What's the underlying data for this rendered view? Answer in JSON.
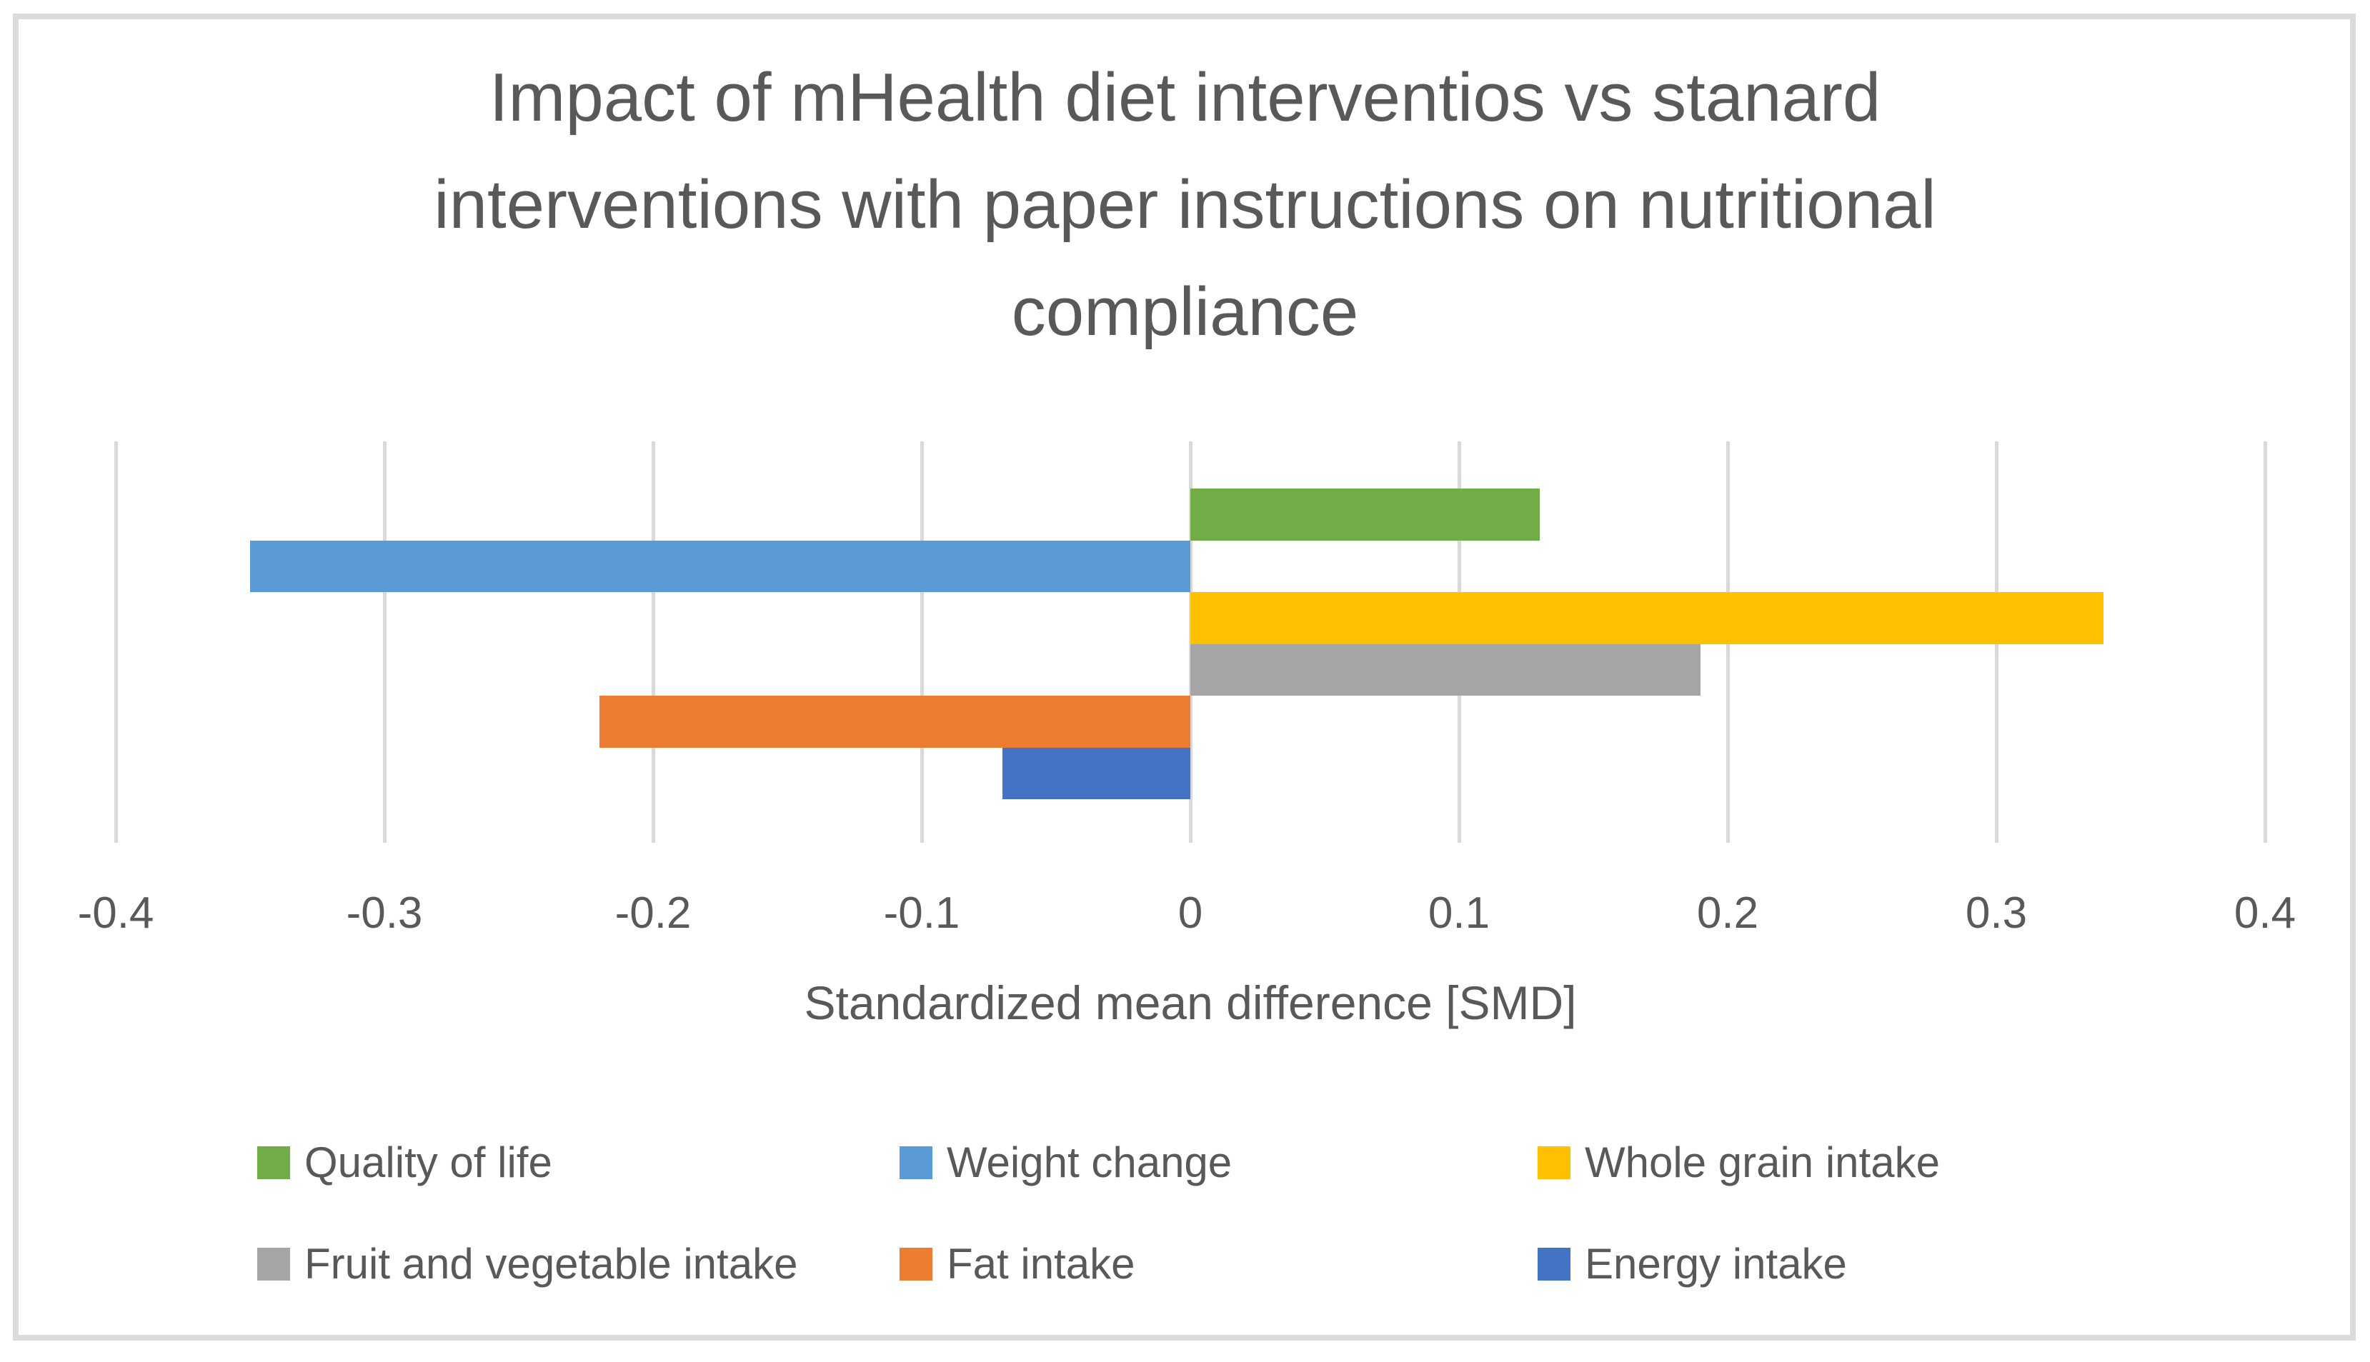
{
  "figure": {
    "background_color": "#ffffff",
    "border_color": "#DBDBDB",
    "text_color": "#595959",
    "gridline_color": "#D9D9D9"
  },
  "chart_data": {
    "type": "bar",
    "orientation": "horizontal",
    "title": "Impact of mHealth diet interventios vs stanard interventions with paper instructions on nutritional compliance",
    "title_lines": [
      "Impact of mHealth diet interventios vs stanard",
      "interventions with paper instructions on nutritional",
      "compliance"
    ],
    "xlabel": "Standardized mean difference [SMD]",
    "ylabel": "",
    "xlim": [
      -0.4,
      0.4
    ],
    "x_ticks": [
      -0.4,
      -0.3,
      -0.2,
      -0.1,
      0,
      0.1,
      0.2,
      0.3,
      0.4
    ],
    "x_tick_labels": [
      "-0.4",
      "-0.3",
      "-0.2",
      "-0.1",
      "0",
      "0.1",
      "0.2",
      "0.3",
      "0.4"
    ],
    "grid": true,
    "legend_position": "bottom",
    "series": [
      {
        "name": "Quality of life",
        "value": 0.13,
        "color": "#70AD47"
      },
      {
        "name": "Weight change",
        "value": -0.35,
        "color": "#5B9BD5"
      },
      {
        "name": "Whole grain intake",
        "value": 0.34,
        "color": "#FFC000"
      },
      {
        "name": "Fruit and vegetable intake",
        "value": 0.19,
        "color": "#A5A5A5"
      },
      {
        "name": "Fat intake",
        "value": -0.22,
        "color": "#ED7D31"
      },
      {
        "name": "Energy intake",
        "value": -0.07,
        "color": "#4472C4"
      }
    ],
    "legend_rows": [
      [
        0,
        1,
        2
      ],
      [
        3,
        4,
        5
      ]
    ]
  }
}
